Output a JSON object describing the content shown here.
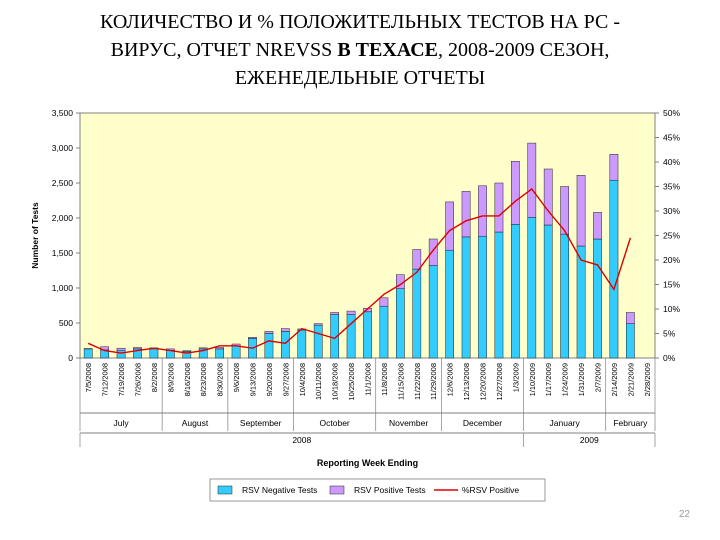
{
  "title": {
    "line1": "КОЛИЧЕСТВО И % ПОЛОЖИТЕЛЬНЫХ ТЕСТОВ НА РС -",
    "line2_pre": "ВИРУС, ОТЧЕТ NREVSS ",
    "line2_bold": "В ТЕХАСЕ",
    "line2_post": ", 2008-2009 СЕЗОН,",
    "line3": "ЕЖЕНЕДЕЛЬНЫЕ ОТЧЕТЫ"
  },
  "slide_number": "22",
  "colors": {
    "plot_bg": "#FFFFCC",
    "negative": "#33CCFF",
    "positive": "#CC99FF",
    "line": "#DD0000"
  },
  "chart_data": {
    "type": "bar",
    "stacked": true,
    "secondary_axis": true,
    "xlabel": "Reporting Week Ending",
    "ylabel": "Number of Tests",
    "ylim": [
      0,
      3500
    ],
    "y2lim": [
      0,
      0.5
    ],
    "yticks": [
      "0",
      "500",
      "1,000",
      "1,500",
      "2,000",
      "2,500",
      "3,000",
      "3,500"
    ],
    "y2ticks": [
      "0%",
      "5%",
      "10%",
      "15%",
      "20%",
      "25%",
      "30%",
      "35%",
      "40%",
      "45%",
      "50%"
    ],
    "grid": false,
    "legend_position": "bottom",
    "categories": [
      "7/5/2008",
      "7/12/2008",
      "7/19/2008",
      "7/26/2008",
      "8/2/2008",
      "8/9/2008",
      "8/16/2008",
      "8/23/2008",
      "8/30/2008",
      "9/6/2008",
      "9/13/2008",
      "9/20/2008",
      "9/27/2008",
      "10/4/2008",
      "10/11/2008",
      "10/18/2008",
      "10/25/2008",
      "11/1/2008",
      "11/8/2008",
      "11/15/2008",
      "11/22/2008",
      "11/29/2008",
      "12/6/2008",
      "12/13/2008",
      "12/20/2008",
      "12/27/2008",
      "1/3/2009",
      "1/10/2009",
      "1/17/2009",
      "1/24/2009",
      "1/31/2009",
      "2/7/2009",
      "2/14/2009",
      "2/21/2009",
      "2/28/2009"
    ],
    "month_labels": [
      {
        "label": "July",
        "from": 0,
        "to": 4
      },
      {
        "label": "August",
        "from": 5,
        "to": 8
      },
      {
        "label": "September",
        "from": 9,
        "to": 12
      },
      {
        "label": "October",
        "from": 13,
        "to": 17
      },
      {
        "label": "November",
        "from": 18,
        "to": 21
      },
      {
        "label": "December",
        "from": 22,
        "to": 26
      },
      {
        "label": "January",
        "from": 27,
        "to": 31
      },
      {
        "label": "February",
        "from": 32,
        "to": 34
      }
    ],
    "year_labels": [
      {
        "label": "2008",
        "from": 0,
        "to": 26
      },
      {
        "label": "2009",
        "from": 27,
        "to": 34
      }
    ],
    "series": [
      {
        "name": "RSV Negative Tests",
        "kind": "bar",
        "axis": "primary",
        "values": [
          130,
          115,
          105,
          130,
          130,
          110,
          95,
          130,
          130,
          170,
          280,
          350,
          380,
          400,
          470,
          620,
          620,
          660,
          740,
          990,
          1270,
          1320,
          1540,
          1730,
          1740,
          1800,
          1910,
          2010,
          1900,
          1770,
          1600,
          1700,
          2540,
          490,
          0
        ]
      },
      {
        "name": "RSV Positive Tests",
        "kind": "bar",
        "axis": "primary",
        "values": [
          5,
          45,
          35,
          20,
          15,
          20,
          10,
          15,
          20,
          30,
          15,
          30,
          40,
          15,
          20,
          30,
          50,
          50,
          120,
          200,
          280,
          380,
          690,
          650,
          720,
          700,
          900,
          1060,
          800,
          680,
          1010,
          380,
          370,
          160,
          0
        ]
      },
      {
        "name": "%RSV Positive",
        "kind": "line",
        "axis": "secondary",
        "values": [
          0.03,
          0.015,
          0.01,
          0.015,
          0.02,
          0.015,
          0.01,
          0.015,
          0.025,
          0.025,
          0.02,
          0.035,
          0.03,
          0.06,
          0.05,
          0.04,
          0.07,
          0.1,
          0.13,
          0.15,
          0.175,
          0.22,
          0.26,
          0.28,
          0.29,
          0.29,
          0.32,
          0.345,
          0.3,
          0.26,
          0.2,
          0.19,
          0.14,
          0.245,
          null
        ]
      }
    ]
  }
}
